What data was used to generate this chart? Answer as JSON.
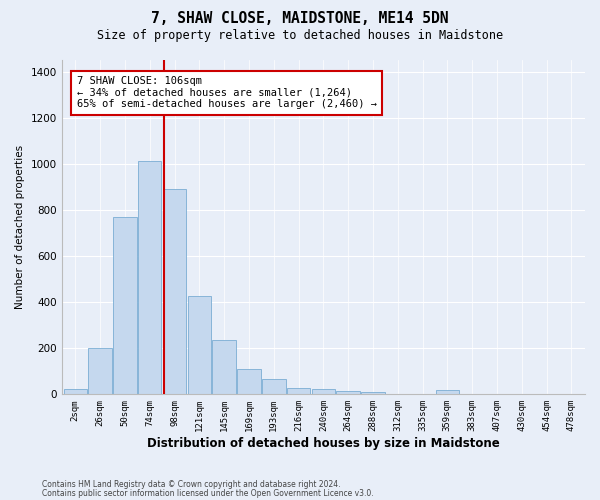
{
  "title": "7, SHAW CLOSE, MAIDSTONE, ME14 5DN",
  "subtitle": "Size of property relative to detached houses in Maidstone",
  "xlabel": "Distribution of detached houses by size in Maidstone",
  "ylabel": "Number of detached properties",
  "footnote1": "Contains HM Land Registry data © Crown copyright and database right 2024.",
  "footnote2": "Contains public sector information licensed under the Open Government Licence v3.0.",
  "annotation_title": "7 SHAW CLOSE: 106sqm",
  "annotation_line1": "← 34% of detached houses are smaller (1,264)",
  "annotation_line2": "65% of semi-detached houses are larger (2,460) →",
  "property_line_x": 3.57,
  "bar_color": "#c5d8ee",
  "bar_edge_color": "#7aadd4",
  "property_line_color": "#cc0000",
  "annotation_box_edgecolor": "#cc0000",
  "background_color": "#e8eef8",
  "grid_color": "#ffffff",
  "categories": [
    "2sqm",
    "26sqm",
    "50sqm",
    "74sqm",
    "98sqm",
    "121sqm",
    "145sqm",
    "169sqm",
    "193sqm",
    "216sqm",
    "240sqm",
    "264sqm",
    "288sqm",
    "312sqm",
    "335sqm",
    "359sqm",
    "383sqm",
    "407sqm",
    "430sqm",
    "454sqm",
    "478sqm"
  ],
  "values": [
    25,
    200,
    770,
    1010,
    890,
    425,
    235,
    110,
    68,
    27,
    22,
    15,
    8,
    0,
    0,
    20,
    0,
    0,
    0,
    0,
    0
  ],
  "ylim": [
    0,
    1450
  ],
  "yticks": [
    0,
    200,
    400,
    600,
    800,
    1000,
    1200,
    1400
  ],
  "title_fontsize": 10.5,
  "subtitle_fontsize": 8.5,
  "xlabel_fontsize": 8.5,
  "ylabel_fontsize": 7.5,
  "tick_fontsize": 6.5,
  "annotation_fontsize": 7.5
}
